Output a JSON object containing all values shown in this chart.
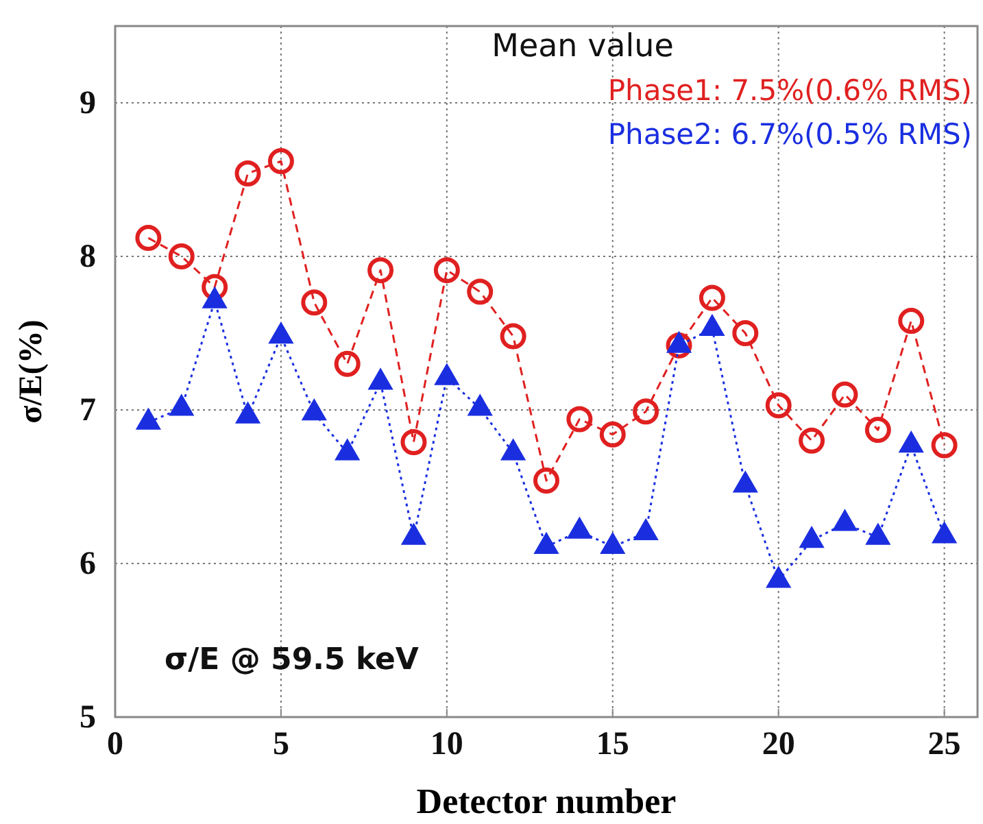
{
  "chart_data": {
    "type": "line",
    "xlabel": "Detector number",
    "ylabel": "σ/E(%)",
    "legend_title": "Mean value",
    "legend": "top right",
    "grid": true,
    "x": [
      1,
      2,
      3,
      4,
      5,
      6,
      7,
      8,
      9,
      10,
      11,
      12,
      13,
      14,
      15,
      16,
      17,
      18,
      19,
      20,
      21,
      22,
      23,
      24,
      25
    ],
    "xlim": [
      0,
      26
    ],
    "xticks": [
      0,
      5,
      10,
      15,
      20,
      25
    ],
    "ylim": [
      5,
      9.5
    ],
    "yticks": [
      5,
      6,
      7,
      8,
      9
    ],
    "series": [
      {
        "name": "Phase1: 7.5%(0.6% RMS)",
        "color": "#e02020",
        "marker": "circle",
        "line_style": "dashed",
        "values": [
          8.12,
          8.0,
          7.8,
          8.54,
          8.62,
          7.7,
          7.3,
          7.91,
          6.79,
          7.91,
          7.77,
          7.48,
          6.54,
          6.94,
          6.84,
          6.99,
          7.42,
          7.73,
          7.5,
          7.03,
          6.8,
          7.1,
          6.87,
          7.58,
          6.77
        ]
      },
      {
        "name": "Phase2: 6.7%(0.5% RMS)",
        "color": "#1a2ee0",
        "marker": "triangle",
        "line_style": "dotted",
        "values": [
          6.92,
          7.01,
          7.71,
          6.96,
          7.48,
          6.98,
          6.72,
          7.18,
          6.17,
          7.21,
          7.01,
          6.72,
          6.11,
          6.21,
          6.11,
          6.2,
          7.42,
          7.53,
          6.51,
          5.89,
          6.15,
          6.26,
          6.17,
          6.77,
          6.18
        ]
      }
    ],
    "annotations": [
      "σ/E @ 59.5 keV"
    ]
  }
}
